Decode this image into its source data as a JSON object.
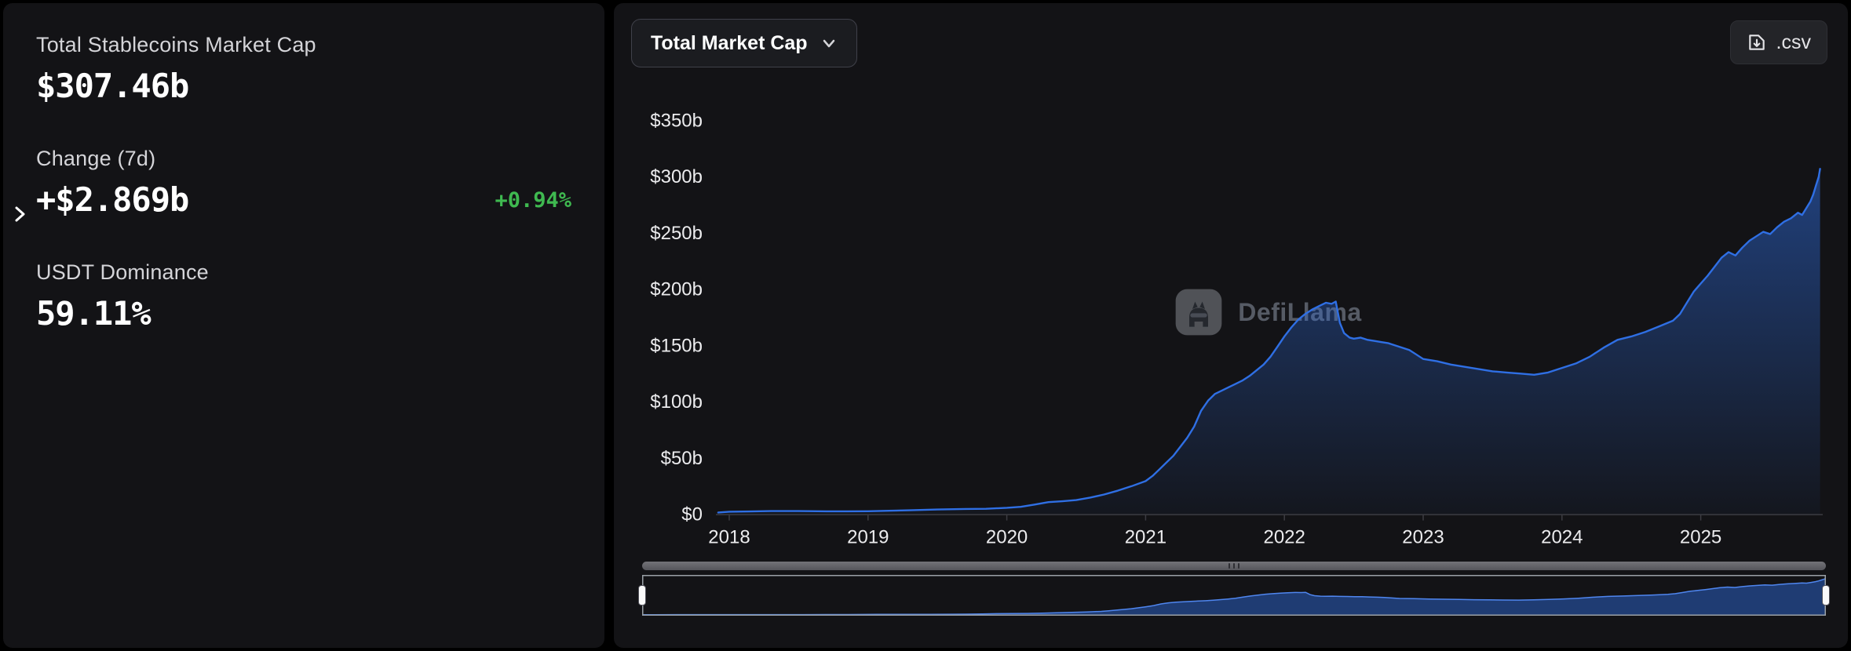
{
  "stats": {
    "market_cap_label": "Total Stablecoins Market Cap",
    "market_cap_value": "$307.46b",
    "change_label": "Change (7d)",
    "change_value": "+$2.869b",
    "change_pct": "+0.94%",
    "change_pct_color": "#3fb950",
    "dominance_label": "USDT Dominance",
    "dominance_value": "59.11%"
  },
  "toolbar": {
    "metric_selector": "Total Market Cap",
    "csv_label": ".csv"
  },
  "watermark": {
    "text": "DefiLlama"
  },
  "chart_data": {
    "type": "area",
    "title": "Total Market Cap",
    "unit": "USD billions",
    "legend_position": "none",
    "grid": false,
    "ylim": [
      0,
      350
    ],
    "y_ticks": {
      "values": [
        0,
        50,
        100,
        150,
        200,
        250,
        300,
        350
      ],
      "labels": [
        "$0",
        "$50b",
        "$100b",
        "$150b",
        "$200b",
        "$250b",
        "$300b",
        "$350b"
      ]
    },
    "x_ticks": {
      "years": [
        2018,
        2019,
        2020,
        2021,
        2022,
        2023,
        2024,
        2025
      ],
      "labels": [
        "2018",
        "2019",
        "2020",
        "2021",
        "2022",
        "2023",
        "2024",
        "2025"
      ]
    },
    "series": [
      {
        "name": "Total Market Cap",
        "color": "#2f6fe4",
        "points": [
          [
            2017.92,
            1.5
          ],
          [
            2018.0,
            2.2
          ],
          [
            2018.15,
            2.5
          ],
          [
            2018.3,
            2.8
          ],
          [
            2018.5,
            2.8
          ],
          [
            2018.7,
            2.6
          ],
          [
            2018.85,
            2.6
          ],
          [
            2019.0,
            2.7
          ],
          [
            2019.15,
            3.1
          ],
          [
            2019.3,
            3.6
          ],
          [
            2019.5,
            4.3
          ],
          [
            2019.7,
            4.7
          ],
          [
            2019.85,
            4.9
          ],
          [
            2020.0,
            5.7
          ],
          [
            2020.1,
            6.6
          ],
          [
            2020.2,
            8.6
          ],
          [
            2020.3,
            10.8
          ],
          [
            2020.4,
            11.6
          ],
          [
            2020.5,
            12.6
          ],
          [
            2020.6,
            14.8
          ],
          [
            2020.7,
            17.5
          ],
          [
            2020.8,
            21.0
          ],
          [
            2020.9,
            25.0
          ],
          [
            2021.0,
            29.5
          ],
          [
            2021.05,
            34
          ],
          [
            2021.1,
            40
          ],
          [
            2021.15,
            46
          ],
          [
            2021.2,
            52
          ],
          [
            2021.25,
            60
          ],
          [
            2021.3,
            68
          ],
          [
            2021.35,
            78
          ],
          [
            2021.4,
            92
          ],
          [
            2021.45,
            101
          ],
          [
            2021.5,
            107
          ],
          [
            2021.55,
            110
          ],
          [
            2021.6,
            113
          ],
          [
            2021.65,
            116
          ],
          [
            2021.7,
            119
          ],
          [
            2021.75,
            123
          ],
          [
            2021.8,
            128
          ],
          [
            2021.85,
            133
          ],
          [
            2021.9,
            140
          ],
          [
            2021.95,
            149
          ],
          [
            2022.0,
            158
          ],
          [
            2022.05,
            166
          ],
          [
            2022.1,
            173
          ],
          [
            2022.15,
            178
          ],
          [
            2022.2,
            182
          ],
          [
            2022.25,
            185
          ],
          [
            2022.3,
            188
          ],
          [
            2022.34,
            187
          ],
          [
            2022.37,
            189
          ],
          [
            2022.4,
            170
          ],
          [
            2022.43,
            161
          ],
          [
            2022.47,
            157
          ],
          [
            2022.5,
            156
          ],
          [
            2022.55,
            157
          ],
          [
            2022.6,
            155
          ],
          [
            2022.65,
            154
          ],
          [
            2022.7,
            153
          ],
          [
            2022.75,
            152
          ],
          [
            2022.8,
            150
          ],
          [
            2022.85,
            148
          ],
          [
            2022.9,
            146
          ],
          [
            2022.95,
            142
          ],
          [
            2023.0,
            138
          ],
          [
            2023.1,
            136
          ],
          [
            2023.2,
            133
          ],
          [
            2023.3,
            131
          ],
          [
            2023.4,
            129
          ],
          [
            2023.5,
            127
          ],
          [
            2023.6,
            126
          ],
          [
            2023.7,
            125
          ],
          [
            2023.8,
            124
          ],
          [
            2023.9,
            126
          ],
          [
            2024.0,
            130
          ],
          [
            2024.1,
            134
          ],
          [
            2024.2,
            140
          ],
          [
            2024.3,
            148
          ],
          [
            2024.4,
            155
          ],
          [
            2024.5,
            158
          ],
          [
            2024.6,
            162
          ],
          [
            2024.7,
            167
          ],
          [
            2024.8,
            172
          ],
          [
            2024.85,
            178
          ],
          [
            2024.9,
            188
          ],
          [
            2024.95,
            198
          ],
          [
            2025.0,
            205
          ],
          [
            2025.05,
            212
          ],
          [
            2025.1,
            220
          ],
          [
            2025.15,
            228
          ],
          [
            2025.2,
            233
          ],
          [
            2025.25,
            230
          ],
          [
            2025.3,
            237
          ],
          [
            2025.35,
            243
          ],
          [
            2025.4,
            247
          ],
          [
            2025.45,
            251
          ],
          [
            2025.5,
            249
          ],
          [
            2025.55,
            255
          ],
          [
            2025.6,
            260
          ],
          [
            2025.65,
            263
          ],
          [
            2025.7,
            268
          ],
          [
            2025.73,
            266
          ],
          [
            2025.76,
            272
          ],
          [
            2025.79,
            278
          ],
          [
            2025.81,
            284
          ],
          [
            2025.83,
            292
          ],
          [
            2025.85,
            300
          ],
          [
            2025.86,
            307
          ]
        ]
      }
    ]
  }
}
